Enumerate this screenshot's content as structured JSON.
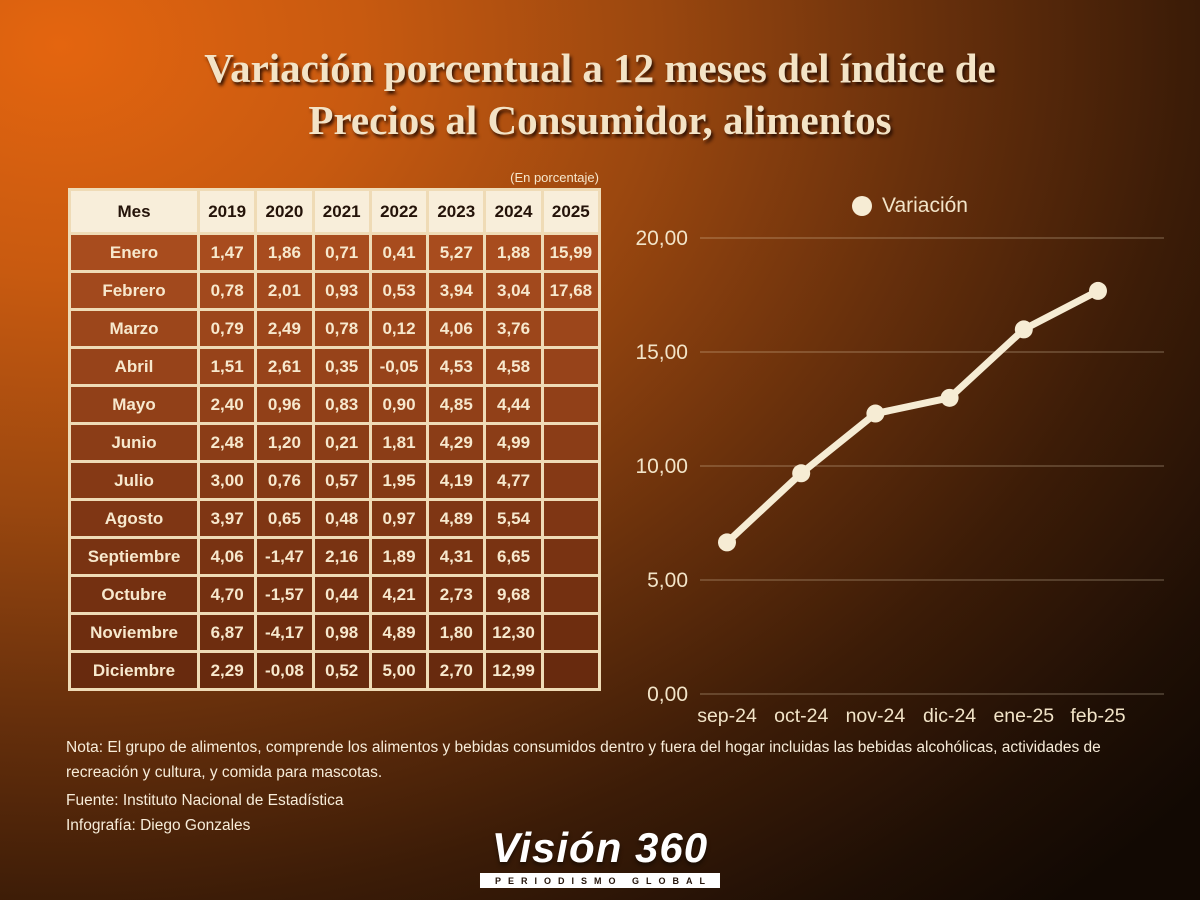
{
  "title": {
    "line1": "Variación porcentual a 12 meses del índice de",
    "line2": "Precios al Consumidor, alimentos"
  },
  "table": {
    "unit_note": "(En porcentaje)",
    "columns": [
      "Mes",
      "2019",
      "2020",
      "2021",
      "2022",
      "2023",
      "2024",
      "2025"
    ],
    "rows": [
      {
        "month": "Enero",
        "values": [
          "1,47",
          "1,86",
          "0,71",
          "0,41",
          "5,27",
          "1,88",
          "15,99"
        ]
      },
      {
        "month": "Febrero",
        "values": [
          "0,78",
          "2,01",
          "0,93",
          "0,53",
          "3,94",
          "3,04",
          "17,68"
        ]
      },
      {
        "month": "Marzo",
        "values": [
          "0,79",
          "2,49",
          "0,78",
          "0,12",
          "4,06",
          "3,76",
          ""
        ]
      },
      {
        "month": "Abril",
        "values": [
          "1,51",
          "2,61",
          "0,35",
          "-0,05",
          "4,53",
          "4,58",
          ""
        ]
      },
      {
        "month": "Mayo",
        "values": [
          "2,40",
          "0,96",
          "0,83",
          "0,90",
          "4,85",
          "4,44",
          ""
        ]
      },
      {
        "month": "Junio",
        "values": [
          "2,48",
          "1,20",
          "0,21",
          "1,81",
          "4,29",
          "4,99",
          ""
        ]
      },
      {
        "month": "Julio",
        "values": [
          "3,00",
          "0,76",
          "0,57",
          "1,95",
          "4,19",
          "4,77",
          ""
        ]
      },
      {
        "month": "Agosto",
        "values": [
          "3,97",
          "0,65",
          "0,48",
          "0,97",
          "4,89",
          "5,54",
          ""
        ]
      },
      {
        "month": "Septiembre",
        "values": [
          "4,06",
          "-1,47",
          "2,16",
          "1,89",
          "4,31",
          "6,65",
          ""
        ]
      },
      {
        "month": "Octubre",
        "values": [
          "4,70",
          "-1,57",
          "0,44",
          "4,21",
          "2,73",
          "9,68",
          ""
        ]
      },
      {
        "month": "Noviembre",
        "values": [
          "6,87",
          "-4,17",
          "0,98",
          "4,89",
          "1,80",
          "12,30",
          ""
        ]
      },
      {
        "month": "Diciembre",
        "values": [
          "2,29",
          "-0,08",
          "0,52",
          "5,00",
          "2,70",
          "12,99",
          ""
        ]
      }
    ]
  },
  "chart_data": {
    "type": "line",
    "legend": "Variación",
    "x": [
      "sep-24",
      "oct-24",
      "nov-24",
      "dic-24",
      "ene-25",
      "feb-25"
    ],
    "values": [
      6.65,
      9.68,
      12.3,
      12.99,
      15.99,
      17.68
    ],
    "ylim": [
      0,
      20
    ],
    "ytick_labels": [
      "0,00",
      "5,00",
      "10,00",
      "15,00",
      "20,00"
    ],
    "grid": true,
    "legend_position": "top-center",
    "line_color": "#f6ecd4"
  },
  "footer": {
    "note": "Nota: El grupo de alimentos, comprende los alimentos y bebidas consumidos dentro y fuera del hogar incluidas las bebidas alcohólicas, actividades de recreación y cultura, y comida para mascotas.",
    "source": "Fuente: Instituto Nacional de Estadística",
    "credit": "Infografía: Diego Gonzales"
  },
  "logo": {
    "name": "Visión 360",
    "tagline": "PERIODISMO GLOBAL"
  },
  "colors": {
    "accent_cream": "#f6ecd4",
    "cell_brown_top": "#a84c1e",
    "cell_brown_bottom": "#682a0e",
    "header_cream": "#f8eeda",
    "bg_orange": "#e4650f",
    "bg_dark": "#120903"
  }
}
